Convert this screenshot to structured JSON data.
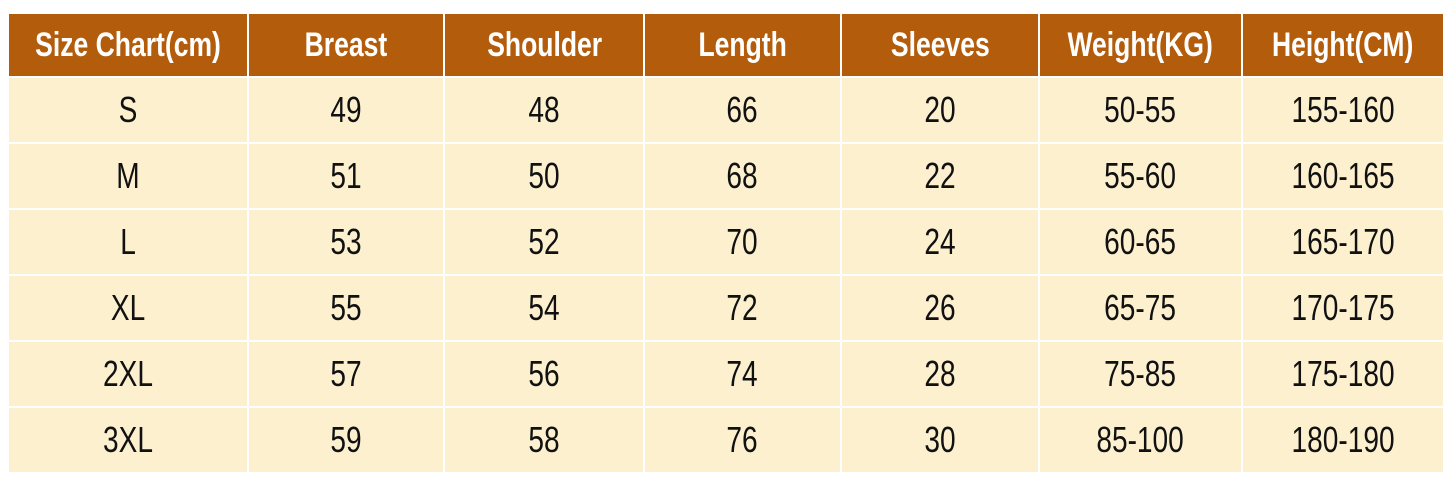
{
  "colors": {
    "header_bg": "#b35c0c",
    "row_bg": "#fdf0cf"
  },
  "headers": [
    "Size Chart(cm)",
    "Breast",
    "Shoulder",
    "Length",
    "Sleeves",
    "Weight(KG)",
    "Height(CM)"
  ],
  "rows": [
    [
      "S",
      "49",
      "48",
      "66",
      "20",
      "50-55",
      "155-160"
    ],
    [
      "M",
      "51",
      "50",
      "68",
      "22",
      "55-60",
      "160-165"
    ],
    [
      "L",
      "53",
      "52",
      "70",
      "24",
      "60-65",
      "165-170"
    ],
    [
      "XL",
      "55",
      "54",
      "72",
      "26",
      "65-75",
      "170-175"
    ],
    [
      "2XL",
      "57",
      "56",
      "74",
      "28",
      "75-85",
      "175-180"
    ],
    [
      "3XL",
      "59",
      "58",
      "76",
      "30",
      "85-100",
      "180-190"
    ]
  ]
}
